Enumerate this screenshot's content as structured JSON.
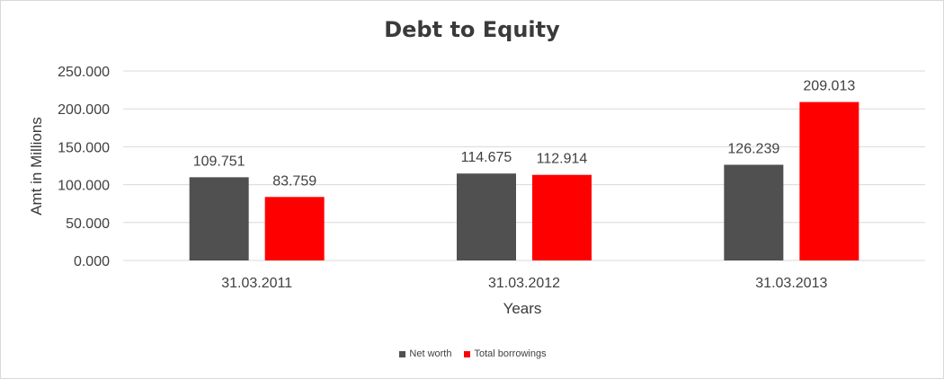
{
  "chart_data": {
    "type": "bar",
    "title": "Debt to Equity",
    "xlabel": "Years",
    "ylabel": "Amt in Millions",
    "categories": [
      "31.03.2011",
      "31.03.2012",
      "31.03.2013"
    ],
    "series": [
      {
        "name": "Net worth",
        "color": "#505050",
        "values": [
          109.751,
          114.675,
          126.239
        ],
        "labels": [
          "109.751",
          "114.675",
          "126.239"
        ]
      },
      {
        "name": "Total borrowings",
        "color": "#ff0000",
        "values": [
          83.759,
          112.914,
          209.013
        ],
        "labels": [
          "83.759",
          "112.914",
          "209.013"
        ]
      }
    ],
    "ylim": [
      0,
      250
    ],
    "yticks": [
      0,
      50,
      100,
      150,
      200,
      250
    ],
    "ytick_labels": [
      "0.000",
      "50.000",
      "100.000",
      "150.000",
      "200.000",
      "250.000"
    ],
    "grid": true,
    "legend_position": "bottom"
  }
}
